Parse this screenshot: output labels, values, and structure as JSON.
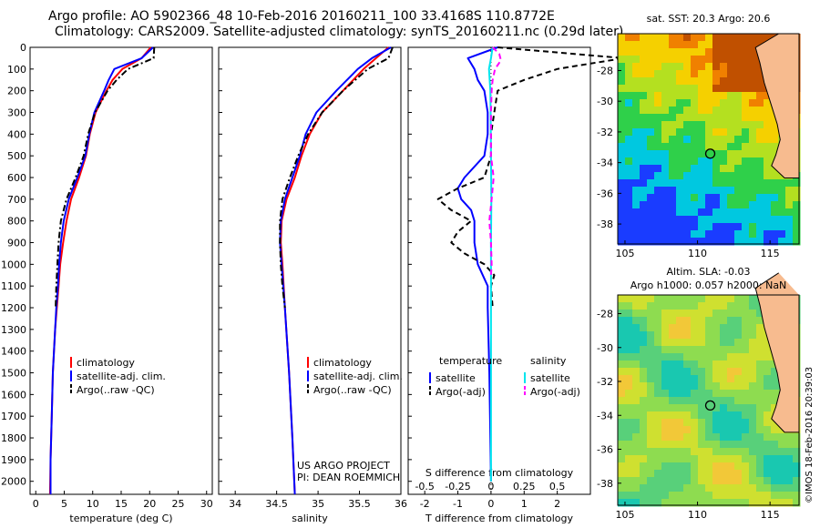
{
  "header": {
    "line1": "Argo profile: AO 5902366_48 10-Feb-2016 20160211_100 33.4168S 110.8772E",
    "line2": "Climatology: CARS2009. Satellite-adjusted climatology: synTS_20160211.nc (0.29d later)"
  },
  "side_credit": "©IMOS 18-Feb-2016 20:39:03",
  "colors": {
    "climatology": "#ff0000",
    "satellite": "#0000ff",
    "argo": "#000000",
    "salinity_satellite": "#00e5ee",
    "salinity_argo": "#ff00ff",
    "land": "#f7bb8f"
  },
  "chart_data": [
    {
      "id": "temperature",
      "type": "line",
      "xlabel": "temperature (deg C)",
      "xlim": [
        -1,
        31
      ],
      "xticks": [
        0,
        5,
        10,
        15,
        20,
        25,
        30
      ],
      "ylim": [
        0,
        2060
      ],
      "yticks": [
        0,
        100,
        200,
        300,
        400,
        500,
        600,
        700,
        800,
        900,
        1000,
        1100,
        1200,
        1300,
        1400,
        1500,
        1600,
        1700,
        1800,
        1900,
        2000
      ],
      "legend": [
        "climatology",
        "satellite-adj. clim.",
        "Argo(..raw -QC)"
      ],
      "series": [
        {
          "name": "climatology",
          "style": "solid",
          "depth": [
            0,
            50,
            100,
            150,
            200,
            300,
            400,
            500,
            600,
            700,
            800,
            900,
            1000,
            1100,
            1200,
            1300,
            1500,
            1700,
            1900,
            2060
          ],
          "values": [
            20.2,
            18.6,
            15.2,
            13.5,
            12.4,
            10.5,
            9.5,
            8.8,
            7.6,
            6.2,
            5.4,
            4.8,
            4.3,
            4.0,
            3.7,
            3.4,
            3.0,
            2.8,
            2.6,
            2.5
          ]
        },
        {
          "name": "satellite-adj. clim.",
          "style": "solid",
          "depth": [
            0,
            50,
            100,
            150,
            200,
            300,
            400,
            500,
            600,
            700,
            800,
            900,
            1000,
            1100,
            1200,
            1300,
            1500,
            1700,
            1900,
            2060
          ],
          "values": [
            20.6,
            18.6,
            13.8,
            12.8,
            12.0,
            10.3,
            9.4,
            8.7,
            7.3,
            5.8,
            4.9,
            4.4,
            4.1,
            3.9,
            3.6,
            3.4,
            3.0,
            2.8,
            2.6,
            2.6
          ]
        },
        {
          "name": "Argo(..raw -QC)",
          "style": "dash-dot",
          "depth": [
            0,
            50,
            100,
            150,
            200,
            300,
            400,
            500,
            600,
            700,
            800,
            900,
            1000,
            1100,
            1200
          ],
          "values": [
            20.8,
            20.7,
            16.2,
            14.2,
            12.6,
            10.4,
            9.2,
            8.4,
            7.0,
            5.4,
            4.4,
            4.0,
            3.8,
            3.6,
            3.5
          ]
        }
      ]
    },
    {
      "id": "salinity",
      "type": "line",
      "xlabel": "salinity",
      "xlim": [
        33.8,
        36.0
      ],
      "xticks": [
        34,
        34.5,
        35,
        35.5,
        36
      ],
      "xticklabels": [
        "34",
        "34.5",
        "35",
        "35.5",
        "36"
      ],
      "ylim": [
        0,
        2060
      ],
      "legend": [
        "climatology",
        "satellite-adj. clim.",
        "Argo(..raw -QC)"
      ],
      "series": [
        {
          "name": "climatology",
          "style": "solid",
          "depth": [
            0,
            50,
            100,
            200,
            300,
            400,
            500,
            600,
            700,
            800,
            900,
            1000,
            1200,
            1500,
            1800,
            2060
          ],
          "values": [
            35.85,
            35.7,
            35.55,
            35.3,
            35.05,
            34.9,
            34.8,
            34.72,
            34.62,
            34.56,
            34.55,
            34.57,
            34.6,
            34.65,
            34.69,
            34.72
          ]
        },
        {
          "name": "satellite-adj. clim.",
          "style": "solid",
          "depth": [
            0,
            50,
            100,
            200,
            300,
            400,
            500,
            600,
            700,
            800,
            900,
            1000,
            1200,
            1500,
            1800,
            2060
          ],
          "values": [
            35.88,
            35.65,
            35.48,
            35.22,
            34.98,
            34.85,
            34.78,
            34.69,
            34.6,
            34.55,
            34.54,
            34.56,
            34.6,
            34.65,
            34.69,
            34.72
          ]
        },
        {
          "name": "Argo(..raw -QC)",
          "style": "dash-dot",
          "depth": [
            0,
            50,
            100,
            200,
            300,
            400,
            500,
            600,
            700,
            800,
            900,
            1000,
            1100,
            1200
          ],
          "values": [
            35.9,
            35.85,
            35.6,
            35.3,
            35.05,
            34.88,
            34.76,
            34.66,
            34.57,
            34.54,
            34.54,
            34.55,
            34.57,
            34.6
          ]
        }
      ],
      "annotation": [
        "US ARGO PROJECT",
        "PI: DEAN ROEMMICH"
      ]
    },
    {
      "id": "difference",
      "type": "line",
      "xlabel": "T difference from climatology",
      "xlabel_top": "S difference from climatology",
      "xlim": [
        -2.5,
        3.0
      ],
      "xticks": [
        -2,
        -1,
        0,
        1,
        2
      ],
      "xticklabels": [
        "-2",
        "-1",
        "0",
        "1",
        "2"
      ],
      "s_xticks": [
        -0.5,
        -0.25,
        0,
        0.25,
        0.5
      ],
      "s_xticklabels": [
        "-0.5",
        "-0.25",
        "0",
        "0.25",
        "0.5"
      ],
      "ylim": [
        0,
        2060
      ],
      "legend_headers": [
        "temperature",
        "salinity"
      ],
      "legend": [
        "satellite",
        "Argo(-adj)",
        "satellite",
        "Argo(-adj)"
      ],
      "series": [
        {
          "name": "temperature satellite",
          "style": "solid",
          "depth": [
            0,
            50,
            100,
            150,
            200,
            300,
            400,
            500,
            600,
            650,
            700,
            750,
            800,
            900,
            1000,
            1100,
            1200,
            1500,
            2000
          ],
          "values": [
            0.2,
            -0.7,
            -0.5,
            -0.4,
            -0.2,
            -0.1,
            -0.1,
            -0.2,
            -0.8,
            -1.0,
            -0.9,
            -0.6,
            -0.5,
            -0.5,
            -0.4,
            -0.1,
            -0.1,
            -0.05,
            0
          ]
        },
        {
          "name": "temperature Argo(-adj)",
          "style": "dashed",
          "depth": [
            0,
            50,
            100,
            150,
            200,
            300,
            400,
            500,
            600,
            650,
            700,
            750,
            800,
            850,
            900,
            950,
            1000,
            1050,
            1100,
            1200
          ],
          "values": [
            0.2,
            4.0,
            2.0,
            1.0,
            0.2,
            0.1,
            0.0,
            0.0,
            -0.2,
            -1.0,
            -1.6,
            -1.2,
            -0.6,
            -1.0,
            -1.2,
            -0.8,
            -0.2,
            0.1,
            0.0,
            0.05
          ]
        },
        {
          "name": "salinity satellite",
          "style": "solid",
          "depth": [
            0,
            50,
            100,
            200,
            300,
            500,
            700,
            900,
            1100,
            1500,
            2000
          ],
          "values": [
            0.05,
            0.0,
            -0.06,
            -0.02,
            -0.01,
            0.0,
            0.01,
            0.0,
            0.0,
            0.0,
            0.0
          ]
        },
        {
          "name": "salinity Argo(-adj)",
          "style": "dashed",
          "depth": [
            0,
            30,
            60,
            100,
            150,
            200,
            300,
            500,
            600,
            700,
            800,
            900,
            1000,
            1050
          ],
          "values": [
            0.05,
            0.25,
            0.3,
            0.12,
            0.05,
            0.02,
            0.0,
            0.0,
            0.08,
            0.02,
            -0.05,
            0.0,
            0.02,
            0.0
          ]
        }
      ]
    },
    {
      "id": "sst_map",
      "type": "heatmap",
      "title": "sat. SST: 20.3  Argo: 20.6",
      "xlim": [
        104.5,
        117
      ],
      "ylim": [
        -39.3,
        -25.6
      ],
      "xticks": [
        105,
        110,
        115
      ],
      "yticks": [
        -28,
        -30,
        -32,
        -34,
        -36,
        -38
      ],
      "marker": {
        "lon": 110.8772,
        "lat": -33.4168
      },
      "color_scale": [
        "#1a3cff",
        "#00c8e0",
        "#2fd04a",
        "#b4e020",
        "#f5d000",
        "#f08000",
        "#c05000"
      ]
    },
    {
      "id": "sla_map",
      "type": "heatmap",
      "title": "Altim. SLA: -0.03",
      "subtitle": "Argo h1000: 0.057 h2000: NaN",
      "xlim": [
        104.5,
        117
      ],
      "ylim": [
        -39.3,
        -26.9
      ],
      "xticks": [
        105,
        110,
        115
      ],
      "yticks": [
        -28,
        -30,
        -32,
        -34,
        -36,
        -38
      ],
      "marker": {
        "lon": 110.8772,
        "lat": -33.4168
      },
      "color_scale": [
        "#19c8b0",
        "#58d07a",
        "#8edc50",
        "#cfe030",
        "#f2c838",
        "#f09030"
      ]
    }
  ]
}
